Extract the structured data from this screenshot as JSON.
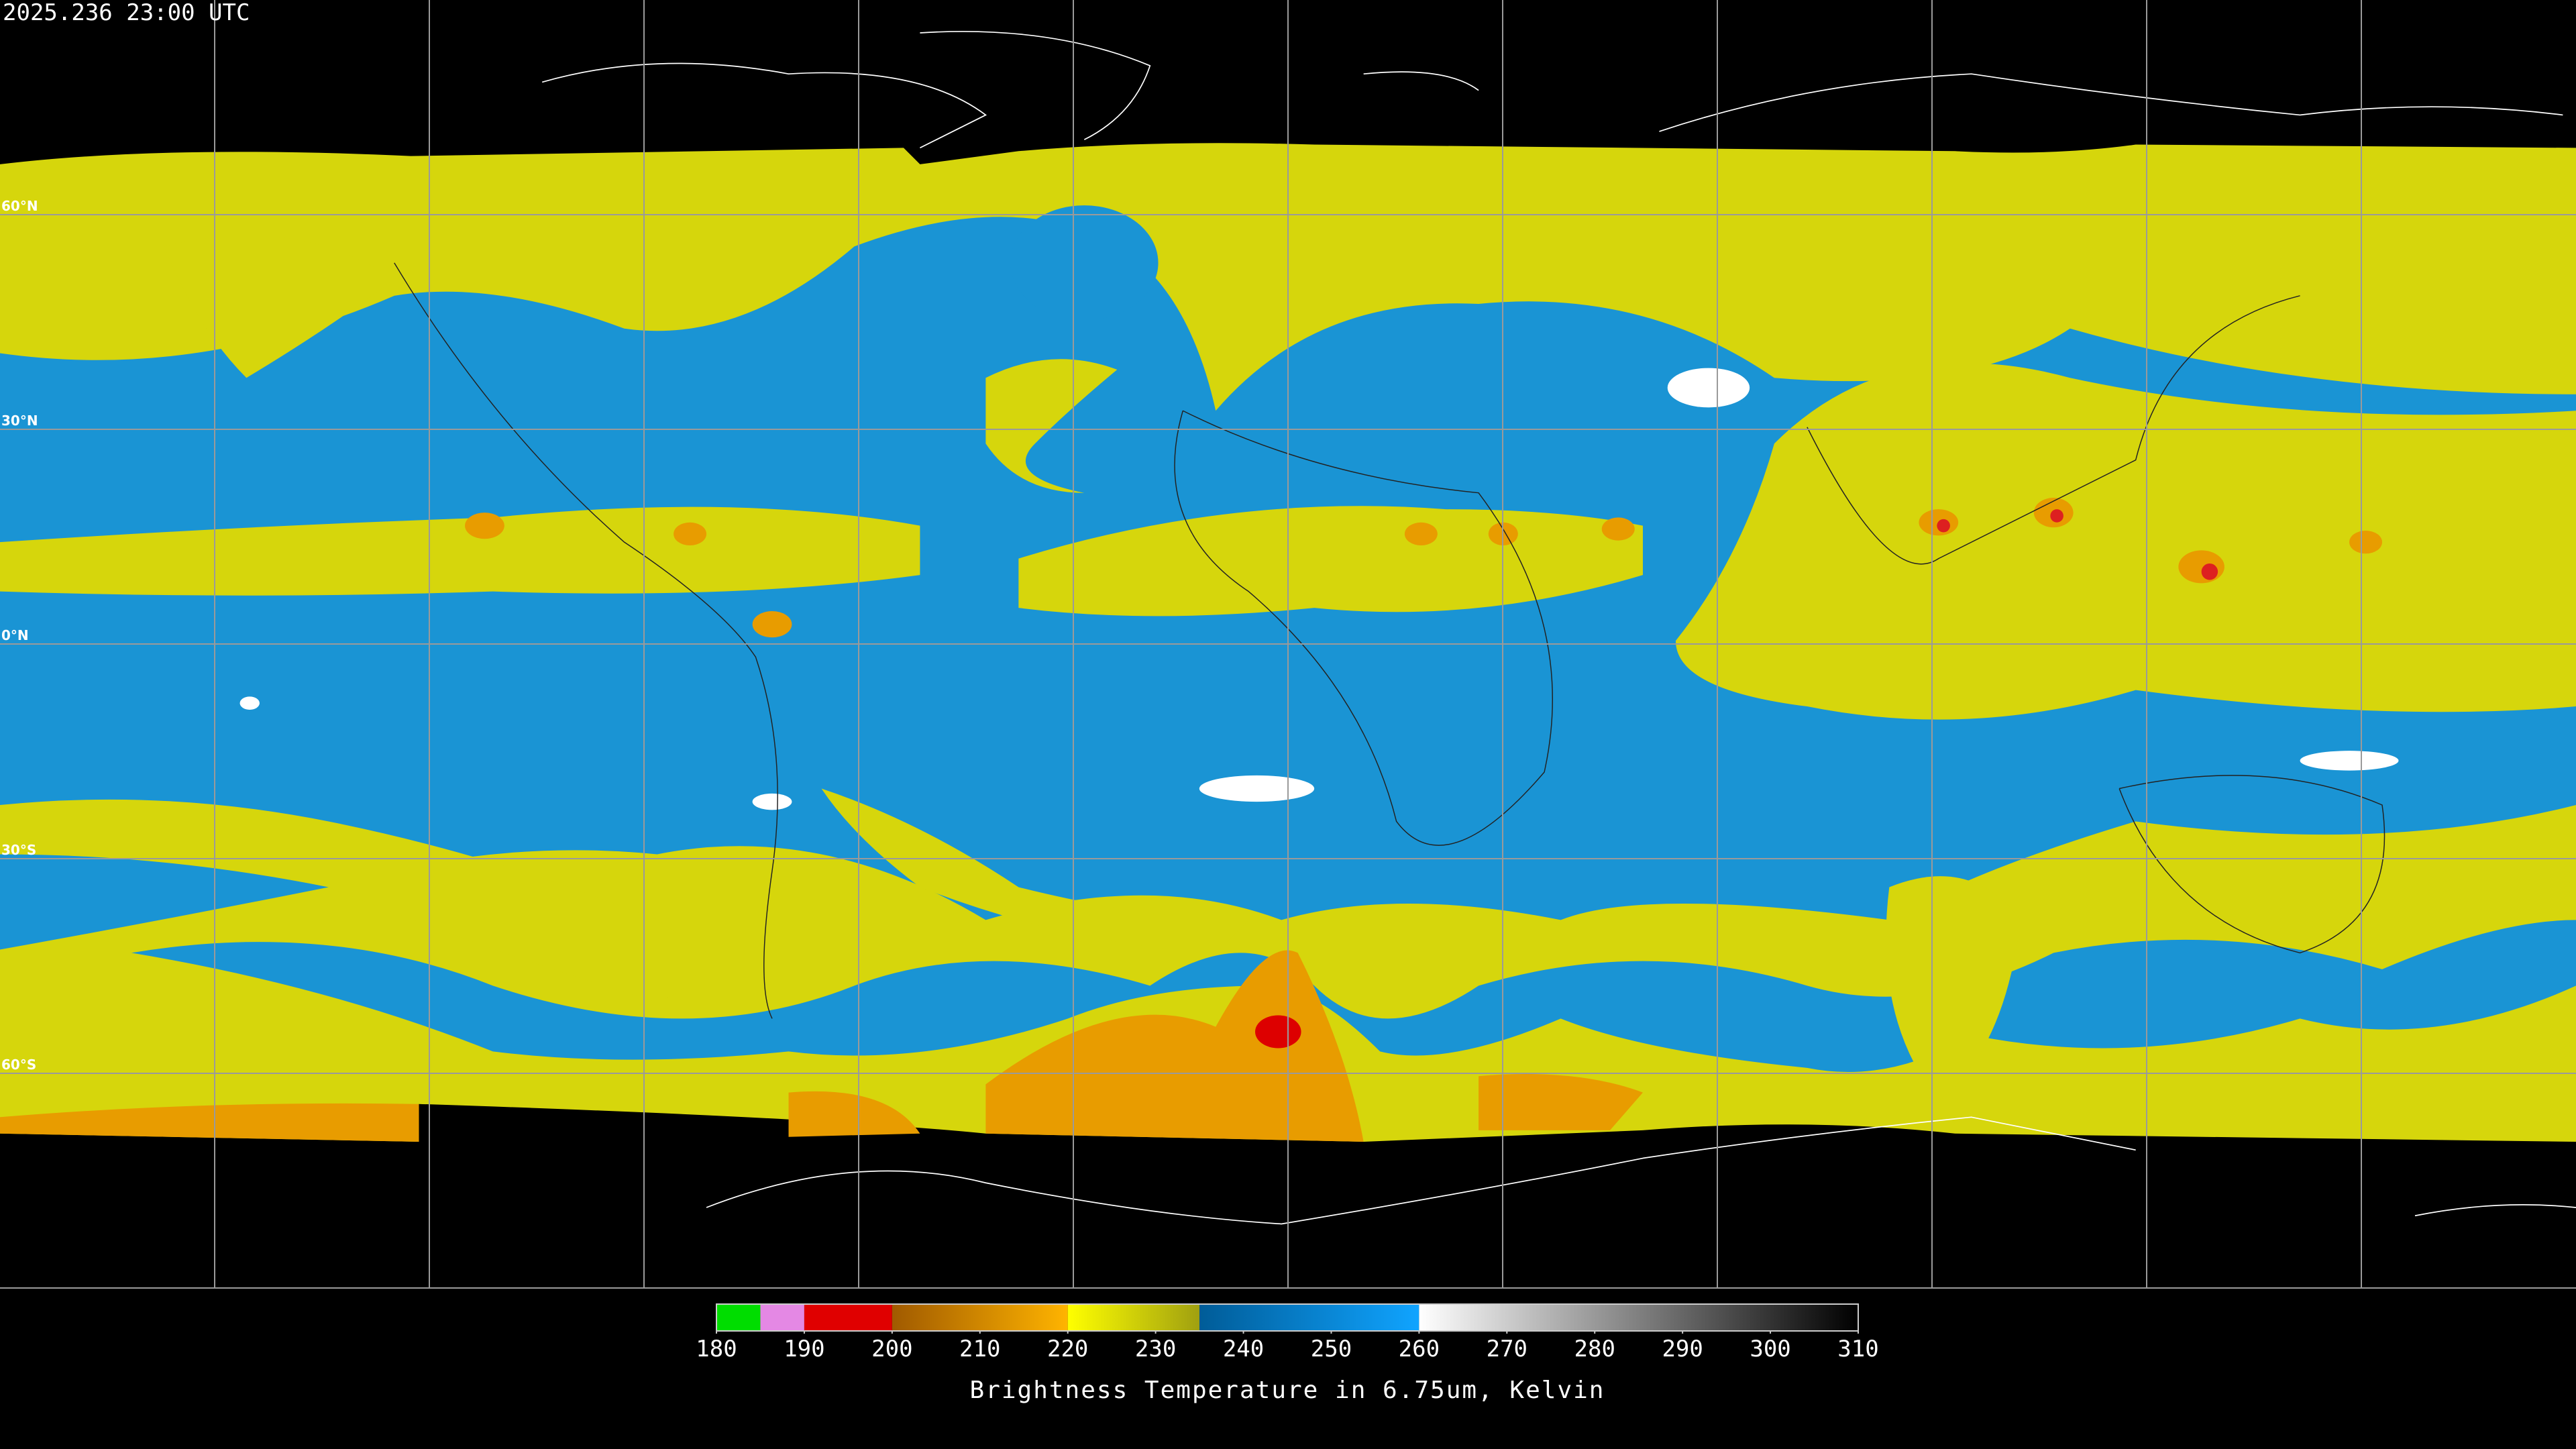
{
  "timestamp": "2025.236 23:00 UTC",
  "lat_labels": [
    "60°N",
    "30°N",
    "0°N",
    "30°S",
    "60°S"
  ],
  "colorbar": {
    "title": "Brightness Temperature in 6.75um, Kelvin",
    "range": [
      180,
      310
    ],
    "ticks": [
      180,
      190,
      200,
      210,
      220,
      230,
      240,
      250,
      260,
      270,
      280,
      290,
      300,
      310
    ],
    "segments": [
      {
        "from": 180,
        "to": 185,
        "colors": [
          "#00dd00",
          "#00dd00"
        ]
      },
      {
        "from": 185,
        "to": 190,
        "colors": [
          "#e488e4",
          "#e488e4"
        ]
      },
      {
        "from": 190,
        "to": 200,
        "colors": [
          "#e00000",
          "#e00000"
        ]
      },
      {
        "from": 200,
        "to": 220,
        "colors": [
          "#a05a00",
          "#ffb400"
        ]
      },
      {
        "from": 220,
        "to": 235,
        "colors": [
          "#ffff00",
          "#a0a010"
        ]
      },
      {
        "from": 235,
        "to": 260,
        "colors": [
          "#005c98",
          "#10a4ff"
        ]
      },
      {
        "from": 260,
        "to": 310,
        "colors": [
          "#ffffff",
          "#000000"
        ]
      }
    ]
  }
}
